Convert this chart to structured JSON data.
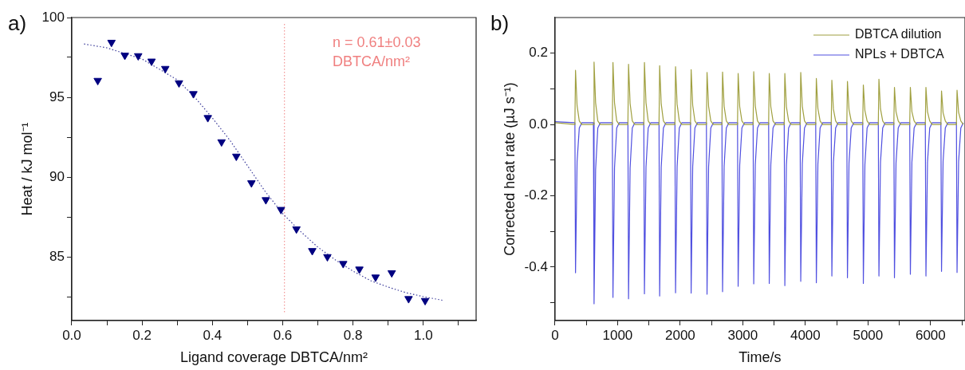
{
  "chart_data": [
    {
      "type": "scatter",
      "title": "a)",
      "xlabel": "Ligand coverage DBTCA/nm²",
      "ylabel": "Heat / kJ mol⁻¹",
      "xlim": [
        0,
        1.15
      ],
      "ylim": [
        81,
        100
      ],
      "xticks": [
        {
          "value": 0,
          "label": "0.0"
        },
        {
          "value": 0.1,
          "label": null
        },
        0.2,
        {
          "value": 0.3,
          "label": null
        },
        0.4,
        {
          "value": 0.5,
          "label": null
        },
        0.6,
        {
          "value": 0.7,
          "label": null
        },
        0.8,
        {
          "value": 0.9,
          "label": null
        },
        {
          "value": 1,
          "label": "1.0"
        },
        {
          "value": 1.1,
          "label": null
        }
      ],
      "yticks": [
        {
          "value": 82.5,
          "label": null
        },
        85,
        {
          "value": 87.5,
          "label": null
        },
        90,
        {
          "value": 92.5,
          "label": null
        },
        95,
        {
          "value": 97.5,
          "label": null
        },
        100
      ],
      "marker": "triangle",
      "legend": false,
      "series": [
        {
          "color": "#000080",
          "x": [
            0.074,
            0.113,
            0.151,
            0.189,
            0.227,
            0.266,
            0.305,
            0.346,
            0.387,
            0.426,
            0.468,
            0.511,
            0.552,
            0.595,
            0.639,
            0.684,
            0.727,
            0.772,
            0.818,
            0.864,
            0.91,
            0.958,
            1.005
          ],
          "values": [
            96.05,
            98.44,
            97.63,
            97.6,
            97.26,
            96.8,
            95.9,
            95.22,
            93.72,
            92.2,
            91.3,
            89.63,
            88.57,
            87.96,
            86.74,
            85.38,
            85.0,
            84.57,
            84.22,
            83.72,
            83.99,
            82.37,
            82.25
          ]
        },
        {
          "type": "line",
          "color": "#3a3a9a",
          "line_style": "dotted",
          "marker": "none",
          "x": [
            0.035,
            0.1,
            0.2,
            0.3,
            0.35,
            0.4,
            0.45,
            0.5,
            0.55,
            0.6,
            0.65,
            0.7,
            0.75,
            0.8,
            0.85,
            0.9,
            0.95,
            1.0,
            1.055
          ],
          "values": [
            98.34,
            98.1,
            97.4,
            96.1,
            95.0,
            93.7,
            92.3,
            90.7,
            89.1,
            87.7,
            86.6,
            85.6,
            84.8,
            84.1,
            83.5,
            83.1,
            82.75,
            82.5,
            82.27
          ]
        }
      ],
      "ref_lines": [
        {
          "axis": "x",
          "value": 0.605,
          "color": "#f08080",
          "line_style": "dotted"
        }
      ],
      "annotations": [
        "n = 0.61±0.03",
        "DBTCA/nm²"
      ]
    },
    {
      "type": "line",
      "title": "b)",
      "xlabel": "Time/s",
      "ylabel": "Corrected heat rate (µJ s⁻¹)",
      "xlim": [
        0,
        6550
      ],
      "ylim": [
        -0.55,
        0.3
      ],
      "xticks": [
        0,
        {
          "value": 500,
          "label": null
        },
        1000,
        {
          "value": 1500,
          "label": null
        },
        2000,
        {
          "value": 2500,
          "label": null
        },
        3000,
        {
          "value": 3500,
          "label": null
        },
        4000,
        {
          "value": 4500,
          "label": null
        },
        5000,
        {
          "value": 5500,
          "label": null
        },
        6000,
        {
          "value": 6500,
          "label": null
        }
      ],
      "yticks": [
        {
          "value": -0.5,
          "label": null
        },
        -0.4,
        {
          "value": -0.3,
          "label": null
        },
        -0.2,
        {
          "value": -0.1,
          "label": null
        },
        {
          "value": 0,
          "label": "0.0"
        },
        {
          "value": 0.1,
          "label": null
        },
        0.2
      ],
      "legend": "top right",
      "marker": "none",
      "line_style": "solid",
      "x": [
        0,
        318,
        328,
        353,
        388,
        428,
        614,
        624,
        649,
        684,
        724,
        916,
        926,
        951,
        986,
        1026,
        1165,
        1175,
        1200,
        1235,
        1275,
        1419,
        1429,
        1454,
        1489,
        1529,
        1662,
        1672,
        1697,
        1732,
        1772,
        1916,
        1926,
        1951,
        1986,
        2026,
        2165,
        2175,
        2200,
        2235,
        2275,
        2419,
        2429,
        2454,
        2489,
        2529,
        2667,
        2677,
        2702,
        2737,
        2777,
        2916,
        2926,
        2951,
        2986,
        3026,
        3165,
        3175,
        3200,
        3235,
        3275,
        3413,
        3423,
        3448,
        3483,
        3523,
        3662,
        3672,
        3697,
        3732,
        3772,
        3916,
        3926,
        3951,
        3986,
        4026,
        4165,
        4175,
        4200,
        4235,
        4275,
        4413,
        4423,
        4448,
        4483,
        4523,
        4662,
        4672,
        4697,
        4732,
        4772,
        4916,
        4926,
        4951,
        4986,
        5026,
        5165,
        5175,
        5200,
        5235,
        5275,
        5413,
        5423,
        5448,
        5483,
        5523,
        5667,
        5677,
        5702,
        5737,
        5777,
        5916,
        5926,
        5951,
        5986,
        6026,
        6165,
        6175,
        6200,
        6235,
        6275,
        6413,
        6423,
        6448,
        6483,
        6523
      ],
      "series": [
        {
          "name": "DBTCA dilution",
          "color": "#a0a040",
          "values": [
            0.005,
            0,
            0.152,
            0.053,
            0.01,
            0,
            0,
            0.175,
            0.061,
            0.01,
            0,
            0,
            0.174,
            0.061,
            0.01,
            0,
            0,
            0.169,
            0.059,
            0.01,
            0,
            0,
            0.174,
            0.061,
            0.01,
            0,
            0,
            0.165,
            0.058,
            0.01,
            0,
            0,
            0.162,
            0.057,
            0.01,
            0,
            0,
            0.154,
            0.054,
            0.01,
            0,
            0,
            0.146,
            0.051,
            0.01,
            0,
            0,
            0.147,
            0.051,
            0.01,
            0,
            0,
            0.143,
            0.05,
            0.01,
            0,
            0,
            0.148,
            0.052,
            0.01,
            0,
            0,
            0.143,
            0.05,
            0.01,
            0,
            0,
            0.143,
            0.05,
            0.01,
            0,
            0,
            0.146,
            0.051,
            0.01,
            0,
            0,
            0.129,
            0.045,
            0.01,
            0,
            0,
            0.124,
            0.043,
            0.01,
            0,
            0,
            0.121,
            0.042,
            0.01,
            0,
            0,
            0.111,
            0.039,
            0.01,
            0,
            0,
            0.127,
            0.044,
            0.01,
            0,
            0,
            0.104,
            0.036,
            0.01,
            0,
            0,
            0.104,
            0.036,
            0.01,
            0,
            0,
            0.104,
            0.036,
            0.01,
            0,
            0,
            0.094,
            0.033,
            0.01,
            0,
            0,
            0.096,
            0.034,
            0.01,
            0
          ]
        },
        {
          "name": "NPLs + DBTCA",
          "color": "#5050e0",
          "values": [
            0.008,
            0.005,
            -0.416,
            -0.104,
            -0.01,
            0.005,
            0.005,
            -0.503,
            -0.126,
            -0.01,
            0.005,
            0.005,
            -0.485,
            -0.121,
            -0.01,
            0.005,
            0.005,
            -0.489,
            -0.122,
            -0.01,
            0.005,
            0.005,
            -0.475,
            -0.119,
            -0.01,
            0.005,
            0.005,
            -0.481,
            -0.12,
            -0.01,
            0.005,
            0.005,
            -0.472,
            -0.118,
            -0.01,
            0.005,
            0.005,
            -0.473,
            -0.118,
            -0.01,
            0.005,
            0.005,
            -0.476,
            -0.119,
            -0.01,
            0.005,
            0.005,
            -0.469,
            -0.117,
            -0.01,
            0.005,
            0.005,
            -0.454,
            -0.114,
            -0.01,
            0.005,
            0.005,
            -0.447,
            -0.112,
            -0.01,
            0.005,
            0.005,
            -0.446,
            -0.112,
            -0.01,
            0.005,
            0.005,
            -0.452,
            -0.113,
            -0.01,
            0.005,
            0.005,
            -0.44,
            -0.11,
            -0.01,
            0.005,
            0.005,
            -0.444,
            -0.111,
            -0.01,
            0.005,
            0.005,
            -0.425,
            -0.106,
            -0.01,
            0.005,
            0.005,
            -0.43,
            -0.108,
            -0.01,
            0.005,
            0.005,
            -0.446,
            -0.112,
            -0.01,
            0.005,
            0.005,
            -0.425,
            -0.106,
            -0.01,
            0.005,
            0.005,
            -0.43,
            -0.108,
            -0.01,
            0.005,
            0.005,
            -0.42,
            -0.105,
            -0.01,
            0.005,
            0.005,
            -0.425,
            -0.106,
            -0.01,
            0.005,
            0.005,
            -0.412,
            -0.103,
            -0.01,
            0.005,
            0.005,
            -0.415,
            -0.104,
            -0.01,
            0.005
          ]
        }
      ]
    }
  ]
}
